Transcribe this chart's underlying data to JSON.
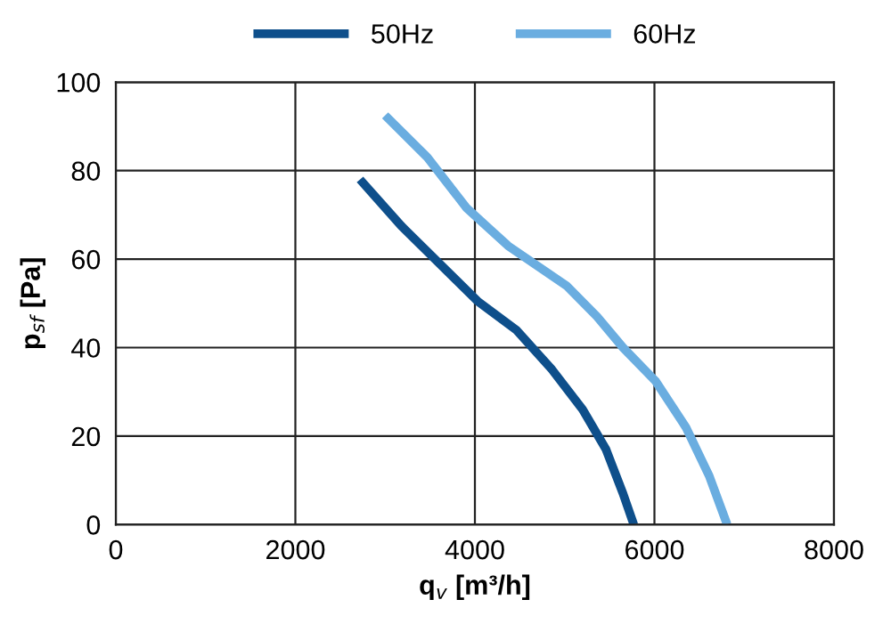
{
  "chart_data": {
    "type": "line",
    "xlabel": "q$_{v}$ [m³/h]",
    "ylabel": "p$_{sf}$ [Pa]",
    "xlim": [
      0,
      8000
    ],
    "xticks": [
      0,
      2000,
      4000,
      6000,
      8000
    ],
    "ylim": [
      0,
      100
    ],
    "yticks": [
      0,
      20,
      40,
      60,
      80,
      100
    ],
    "grid": true,
    "legend": "top",
    "marker": "none",
    "line_style": "solid",
    "series": [
      {
        "name": "50Hz",
        "color": "#0e4f8b",
        "x": [
          2720,
          3180,
          4030,
          4460,
          4860,
          5200,
          5460,
          5650,
          5770
        ],
        "values": [
          78,
          67.5,
          50.5,
          44,
          35,
          26,
          17,
          7,
          0
        ]
      },
      {
        "name": "60Hz",
        "color": "#6aade0",
        "x": [
          3000,
          3470,
          3910,
          4370,
          5020,
          5360,
          5650,
          6010,
          6350,
          6610,
          6810
        ],
        "values": [
          92.5,
          83,
          71.5,
          63,
          54,
          47,
          40,
          32.5,
          22,
          11,
          0
        ]
      }
    ]
  }
}
